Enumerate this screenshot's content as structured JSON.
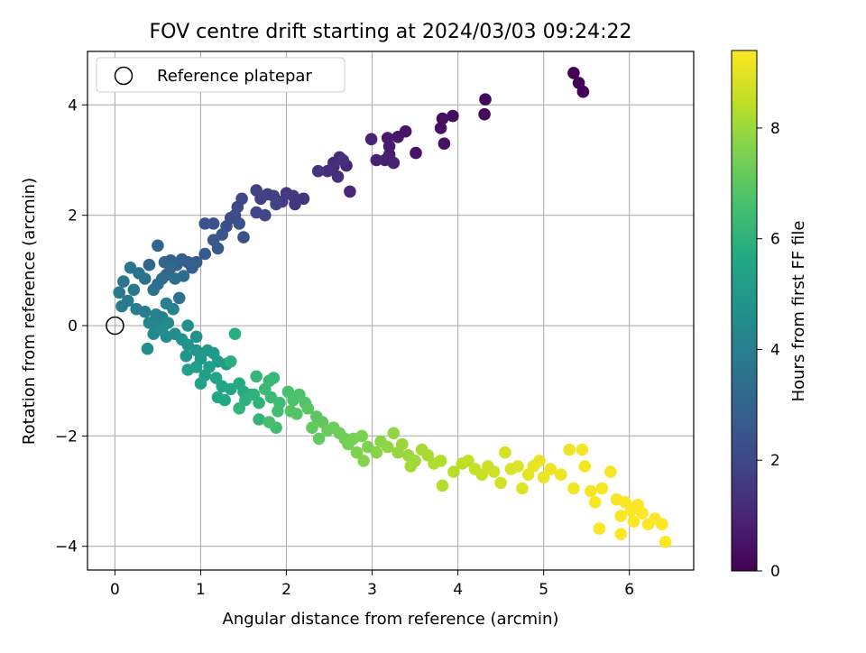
{
  "chart_data": {
    "type": "scatter",
    "title": "FOV centre drift starting at 2024/03/03 09:24:22",
    "xlabel": "Angular distance from reference (arcmin)",
    "ylabel": "Rotation from reference (arcmin)",
    "xlim": [
      -0.32,
      6.75
    ],
    "ylim": [
      -4.43,
      4.97
    ],
    "xticks": [
      0,
      1,
      2,
      3,
      4,
      5,
      6
    ],
    "yticks": [
      -4,
      -2,
      0,
      2,
      4
    ],
    "grid": true,
    "legend": {
      "position": "top-left",
      "entries": [
        "Reference platepar"
      ]
    },
    "reference_point": {
      "x": 0,
      "y": 0
    },
    "colorbar": {
      "label": "Hours from first FF file",
      "colormap": "viridis",
      "range": [
        0,
        9.4
      ],
      "ticks": [
        0,
        2,
        4,
        6,
        8
      ]
    },
    "series": [
      {
        "color_by": "hours",
        "points": [
          [
            5.35,
            4.58,
            0.0
          ],
          [
            5.41,
            4.4,
            0.03
          ],
          [
            5.46,
            4.24,
            0.06
          ],
          [
            4.32,
            4.1,
            0.18
          ],
          [
            4.31,
            3.83,
            0.22
          ],
          [
            3.94,
            3.8,
            0.3
          ],
          [
            3.82,
            3.75,
            0.35
          ],
          [
            3.8,
            3.58,
            0.4
          ],
          [
            3.84,
            3.3,
            0.45
          ],
          [
            3.51,
            3.13,
            0.5
          ],
          [
            3.39,
            3.52,
            0.55
          ],
          [
            3.3,
            3.42,
            0.6
          ],
          [
            3.18,
            3.4,
            0.65
          ],
          [
            3.2,
            3.25,
            0.7
          ],
          [
            3.2,
            3.1,
            0.75
          ],
          [
            3.15,
            3.0,
            0.8
          ],
          [
            3.25,
            2.95,
            0.85
          ],
          [
            3.05,
            3.0,
            0.9
          ],
          [
            2.99,
            3.38,
            0.95
          ],
          [
            2.74,
            2.43,
            1.0
          ],
          [
            2.7,
            2.9,
            1.05
          ],
          [
            2.62,
            3.05,
            1.1
          ],
          [
            2.55,
            2.95,
            1.15
          ],
          [
            2.48,
            2.8,
            1.2
          ],
          [
            2.6,
            2.7,
            1.25
          ],
          [
            2.55,
            2.88,
            1.3
          ],
          [
            2.66,
            3.0,
            1.35
          ],
          [
            2.37,
            2.8,
            1.4
          ],
          [
            2.2,
            2.3,
            1.45
          ],
          [
            2.1,
            2.2,
            1.5
          ],
          [
            2.08,
            2.35,
            1.55
          ],
          [
            2.0,
            2.4,
            1.6
          ],
          [
            1.95,
            2.25,
            1.65
          ],
          [
            1.85,
            2.35,
            1.7
          ],
          [
            1.78,
            2.38,
            1.75
          ],
          [
            1.7,
            2.3,
            1.8
          ],
          [
            1.65,
            2.45,
            1.85
          ],
          [
            1.88,
            2.2,
            1.9
          ],
          [
            1.75,
            2.0,
            1.95
          ],
          [
            1.65,
            2.05,
            2.0
          ],
          [
            1.48,
            2.3,
            2.05
          ],
          [
            1.43,
            2.15,
            2.1
          ],
          [
            1.4,
            2.0,
            2.15
          ],
          [
            1.35,
            1.95,
            2.2
          ],
          [
            1.3,
            1.8,
            2.25
          ],
          [
            1.5,
            1.6,
            2.3
          ],
          [
            1.45,
            1.85,
            2.35
          ],
          [
            1.15,
            1.85,
            2.4
          ],
          [
            1.05,
            1.85,
            2.45
          ],
          [
            1.25,
            1.65,
            2.5
          ],
          [
            1.15,
            1.55,
            2.55
          ],
          [
            1.2,
            1.4,
            2.6
          ],
          [
            1.05,
            1.3,
            2.65
          ],
          [
            0.85,
            1.15,
            2.7
          ],
          [
            0.9,
            1.05,
            2.75
          ],
          [
            0.95,
            1.15,
            2.8
          ],
          [
            0.78,
            1.2,
            2.85
          ],
          [
            0.72,
            1.1,
            2.9
          ],
          [
            0.65,
            1.18,
            2.95
          ],
          [
            0.58,
            1.15,
            3.0
          ],
          [
            0.5,
            1.45,
            3.05
          ],
          [
            0.4,
            1.1,
            3.1
          ],
          [
            0.65,
            1.05,
            3.15
          ],
          [
            0.6,
            0.92,
            3.2
          ],
          [
            0.55,
            0.85,
            3.25
          ],
          [
            0.5,
            0.75,
            3.3
          ],
          [
            0.8,
            0.9,
            3.35
          ],
          [
            0.7,
            0.85,
            3.4
          ],
          [
            0.75,
            0.5,
            3.45
          ],
          [
            0.45,
            0.65,
            3.5
          ],
          [
            0.35,
            0.85,
            3.55
          ],
          [
            0.28,
            0.95,
            3.6
          ],
          [
            0.18,
            1.05,
            3.65
          ],
          [
            0.1,
            0.8,
            3.7
          ],
          [
            0.22,
            0.65,
            3.75
          ],
          [
            0.05,
            0.6,
            3.8
          ],
          [
            0.15,
            0.45,
            3.85
          ],
          [
            0.08,
            0.35,
            3.9
          ],
          [
            0.25,
            0.3,
            3.95
          ],
          [
            0.35,
            0.25,
            4.0
          ],
          [
            0.48,
            0.2,
            4.05
          ],
          [
            0.55,
            0.15,
            4.1
          ],
          [
            0.6,
            0.4,
            4.15
          ],
          [
            0.68,
            0.3,
            4.2
          ],
          [
            0.4,
            0.05,
            4.25
          ],
          [
            0.5,
            0.02,
            4.3
          ],
          [
            0.62,
            0.05,
            4.35
          ],
          [
            0.45,
            -0.15,
            4.4
          ],
          [
            0.6,
            -0.2,
            4.45
          ],
          [
            0.38,
            -0.42,
            4.5
          ],
          [
            0.55,
            -0.08,
            4.55
          ],
          [
            0.7,
            -0.15,
            4.6
          ],
          [
            0.85,
            0.0,
            4.65
          ],
          [
            0.78,
            -0.25,
            4.7
          ],
          [
            0.95,
            -0.2,
            4.75
          ],
          [
            0.85,
            -0.35,
            4.8
          ],
          [
            0.95,
            -0.45,
            4.85
          ],
          [
            0.83,
            -0.55,
            4.9
          ],
          [
            1.0,
            -0.6,
            4.95
          ],
          [
            1.08,
            -0.45,
            5.0
          ],
          [
            1.15,
            -0.5,
            5.05
          ],
          [
            1.2,
            -0.65,
            5.1
          ],
          [
            1.3,
            -0.7,
            5.15
          ],
          [
            1.1,
            -0.75,
            5.2
          ],
          [
            1.05,
            -0.9,
            5.25
          ],
          [
            0.95,
            -0.75,
            5.3
          ],
          [
            0.85,
            -0.8,
            5.35
          ],
          [
            1.0,
            -1.05,
            5.4
          ],
          [
            1.18,
            -0.95,
            5.45
          ],
          [
            1.25,
            -1.1,
            5.5
          ],
          [
            1.35,
            -1.15,
            5.55
          ],
          [
            1.2,
            -1.3,
            5.6
          ],
          [
            1.28,
            -1.35,
            5.65
          ],
          [
            1.45,
            -1.05,
            5.7
          ],
          [
            1.5,
            -1.2,
            5.75
          ],
          [
            1.58,
            -1.25,
            5.8
          ],
          [
            1.4,
            -0.15,
            5.85
          ],
          [
            1.35,
            -0.65,
            5.9
          ],
          [
            1.52,
            -1.35,
            5.95
          ],
          [
            1.62,
            -1.25,
            6.0
          ],
          [
            1.68,
            -1.4,
            6.05
          ],
          [
            1.45,
            -1.5,
            6.1
          ],
          [
            1.68,
            -1.7,
            6.15
          ],
          [
            1.65,
            -0.92,
            6.2
          ],
          [
            1.8,
            -1.0,
            6.25
          ],
          [
            1.85,
            -0.95,
            6.3
          ],
          [
            1.75,
            -1.15,
            6.35
          ],
          [
            1.82,
            -1.3,
            6.4
          ],
          [
            1.92,
            -1.4,
            6.45
          ],
          [
            1.9,
            -1.55,
            6.5
          ],
          [
            1.88,
            -1.85,
            6.55
          ],
          [
            1.8,
            -1.75,
            6.6
          ],
          [
            2.02,
            -1.2,
            6.65
          ],
          [
            2.08,
            -1.35,
            6.7
          ],
          [
            2.15,
            -1.25,
            6.75
          ],
          [
            2.22,
            -1.4,
            6.8
          ],
          [
            2.05,
            -1.55,
            6.85
          ],
          [
            2.12,
            -1.6,
            6.9
          ],
          [
            2.25,
            -1.5,
            6.95
          ],
          [
            2.35,
            -1.65,
            7.0
          ],
          [
            2.42,
            -1.75,
            7.05
          ],
          [
            2.3,
            -1.85,
            7.1
          ],
          [
            2.38,
            -2.05,
            7.15
          ],
          [
            2.48,
            -1.9,
            7.2
          ],
          [
            2.55,
            -1.85,
            7.25
          ],
          [
            2.62,
            -1.95,
            7.3
          ],
          [
            2.68,
            -2.05,
            7.35
          ],
          [
            2.72,
            -2.15,
            7.4
          ],
          [
            2.78,
            -2.05,
            7.45
          ],
          [
            2.88,
            -2.0,
            7.5
          ],
          [
            2.95,
            -2.2,
            7.55
          ],
          [
            2.82,
            -2.3,
            7.6
          ],
          [
            2.9,
            -2.45,
            7.65
          ],
          [
            3.05,
            -2.3,
            7.7
          ],
          [
            3.1,
            -2.1,
            7.75
          ],
          [
            3.18,
            -2.2,
            7.8
          ],
          [
            3.25,
            -1.95,
            7.85
          ],
          [
            3.3,
            -2.3,
            7.9
          ],
          [
            3.35,
            -2.15,
            7.95
          ],
          [
            3.42,
            -2.35,
            8.0
          ],
          [
            3.5,
            -2.45,
            8.05
          ],
          [
            3.45,
            -2.55,
            8.1
          ],
          [
            3.58,
            -2.25,
            8.15
          ],
          [
            3.65,
            -2.35,
            8.2
          ],
          [
            3.72,
            -2.5,
            8.25
          ],
          [
            3.8,
            -2.45,
            8.3
          ],
          [
            3.82,
            -2.9,
            8.35
          ],
          [
            3.95,
            -2.65,
            8.4
          ],
          [
            4.05,
            -2.5,
            8.45
          ],
          [
            4.12,
            -2.45,
            8.5
          ],
          [
            4.2,
            -2.6,
            8.55
          ],
          [
            4.28,
            -2.7,
            8.6
          ],
          [
            4.35,
            -2.55,
            8.65
          ],
          [
            4.42,
            -2.65,
            8.7
          ],
          [
            4.5,
            -2.85,
            8.75
          ],
          [
            4.55,
            -2.3,
            8.8
          ],
          [
            4.62,
            -2.6,
            8.85
          ],
          [
            4.7,
            -2.55,
            8.9
          ],
          [
            4.75,
            -2.95,
            8.95
          ],
          [
            4.82,
            -2.7,
            9.0
          ],
          [
            4.88,
            -2.55,
            9.05
          ],
          [
            4.95,
            -2.45,
            9.1
          ],
          [
            5.0,
            -2.75,
            9.12
          ],
          [
            5.08,
            -2.6,
            9.15
          ],
          [
            5.2,
            -2.7,
            9.18
          ],
          [
            5.3,
            -2.25,
            9.2
          ],
          [
            5.35,
            -2.95,
            9.22
          ],
          [
            5.45,
            -2.25,
            9.24
          ],
          [
            5.48,
            -2.55,
            9.26
          ],
          [
            5.55,
            -3.0,
            9.28
          ],
          [
            5.6,
            -3.2,
            9.3
          ],
          [
            5.68,
            -2.95,
            9.31
          ],
          [
            5.78,
            -2.65,
            9.32
          ],
          [
            5.85,
            -3.15,
            9.33
          ],
          [
            5.9,
            -3.45,
            9.34
          ],
          [
            5.95,
            -3.2,
            9.35
          ],
          [
            6.02,
            -3.35,
            9.36
          ],
          [
            6.05,
            -3.55,
            9.37
          ],
          [
            6.1,
            -3.25,
            9.38
          ],
          [
            6.15,
            -3.4,
            9.39
          ],
          [
            6.22,
            -3.6,
            9.39
          ],
          [
            6.3,
            -3.5,
            9.4
          ],
          [
            6.38,
            -3.6,
            9.4
          ],
          [
            6.42,
            -3.92,
            9.4
          ],
          [
            5.65,
            -3.68,
            9.35
          ],
          [
            5.9,
            -3.78,
            9.38
          ],
          [
            6.05,
            -3.3,
            9.37
          ]
        ]
      }
    ]
  }
}
